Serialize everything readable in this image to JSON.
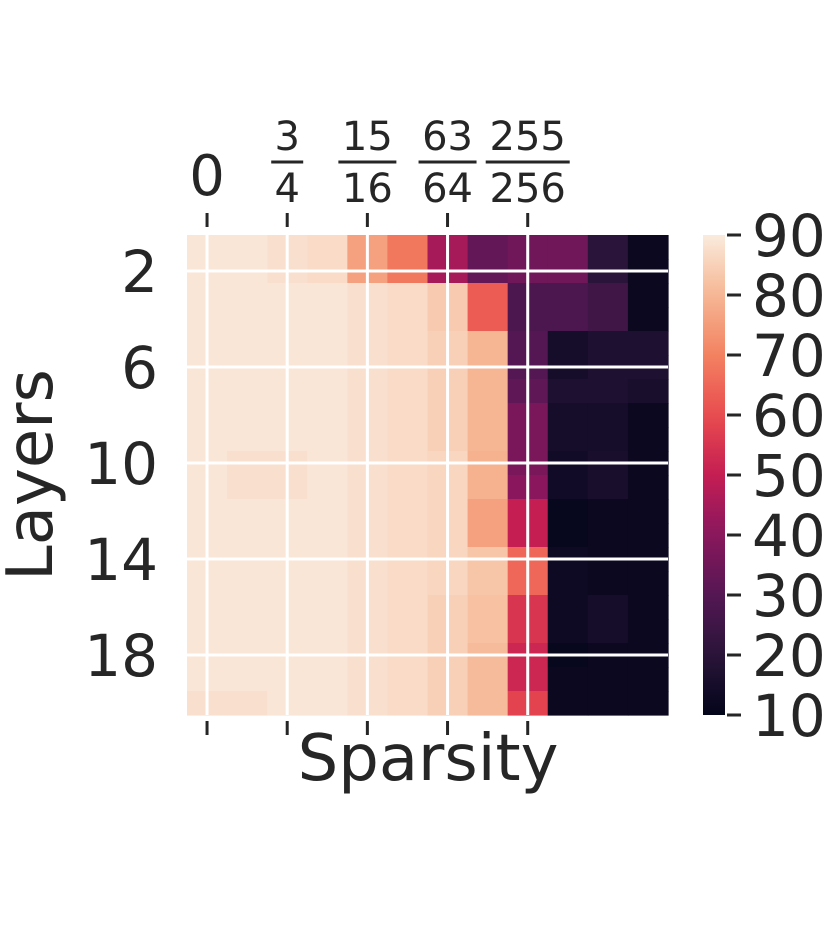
{
  "chart_data": {
    "type": "heatmap",
    "xlabel": "Sparsity",
    "ylabel": "Layers",
    "x_ticks": [
      {
        "label": "0"
      },
      {
        "num": "3",
        "den": "4"
      },
      {
        "num": "15",
        "den": "16"
      },
      {
        "num": "63",
        "den": "64"
      },
      {
        "num": "255",
        "den": "256"
      }
    ],
    "x_tick_col_positions": [
      0.5,
      2.5,
      4.5,
      6.5,
      8.5
    ],
    "y_tick_labels": [
      "2",
      "6",
      "10",
      "14",
      "18"
    ],
    "y_tick_layers": [
      2,
      6,
      10,
      14,
      18
    ],
    "layers": [
      1,
      2,
      3,
      4,
      5,
      6,
      7,
      8,
      9,
      10,
      11,
      12,
      13,
      14,
      15,
      16,
      17,
      18,
      19,
      20
    ],
    "colorbar": {
      "min": 10,
      "max": 90,
      "tick_labels": [
        "90",
        "80",
        "70",
        "60",
        "50",
        "40",
        "30",
        "20",
        "10"
      ],
      "tick_values": [
        90,
        80,
        70,
        60,
        50,
        40,
        30,
        20,
        10
      ],
      "colormap": "rocket"
    },
    "grid": true,
    "values": [
      [
        89,
        89,
        88,
        87,
        76,
        68,
        45,
        33,
        35,
        35,
        20,
        12
      ],
      [
        89,
        89,
        88,
        87,
        76,
        68,
        45,
        33,
        35,
        35,
        20,
        12
      ],
      [
        89,
        89,
        89,
        89,
        88,
        87,
        84,
        63,
        28,
        28,
        25,
        12
      ],
      [
        89,
        89,
        89,
        89,
        88,
        87,
        84,
        63,
        28,
        28,
        25,
        12
      ],
      [
        89,
        89,
        89,
        89,
        88,
        87,
        85,
        80,
        30,
        15,
        17,
        17
      ],
      [
        89,
        89,
        89,
        89,
        88,
        87,
        85,
        80,
        30,
        15,
        17,
        17
      ],
      [
        89,
        89,
        89,
        89,
        88,
        87,
        85,
        80,
        32,
        17,
        17,
        16
      ],
      [
        89,
        89,
        89,
        89,
        88,
        87,
        85,
        80,
        37,
        15,
        15,
        12
      ],
      [
        89,
        89,
        89,
        89,
        88,
        87,
        85,
        80,
        37,
        15,
        15,
        12
      ],
      [
        89,
        88,
        88,
        89,
        88,
        87,
        86,
        79,
        37,
        14,
        16,
        12
      ],
      [
        89,
        88,
        88,
        89,
        88,
        87,
        86,
        79,
        40,
        14,
        16,
        12
      ],
      [
        89,
        89,
        89,
        89,
        88,
        87,
        86,
        76,
        50,
        11,
        12,
        12
      ],
      [
        89,
        89,
        89,
        89,
        88,
        87,
        86,
        76,
        50,
        11,
        12,
        12
      ],
      [
        89,
        89,
        89,
        89,
        88,
        87,
        86,
        83,
        65,
        13,
        12,
        12
      ],
      [
        89,
        89,
        89,
        89,
        88,
        87,
        86,
        83,
        65,
        13,
        12,
        12
      ],
      [
        89,
        89,
        89,
        89,
        88,
        87,
        85,
        82,
        55,
        13,
        15,
        12
      ],
      [
        89,
        89,
        89,
        89,
        88,
        87,
        85,
        82,
        55,
        13,
        15,
        12
      ],
      [
        89,
        89,
        89,
        89,
        88,
        87,
        85,
        81,
        52,
        11,
        12,
        12
      ],
      [
        89,
        89,
        89,
        89,
        88,
        87,
        85,
        81,
        52,
        12,
        12,
        12
      ],
      [
        88,
        88,
        89,
        89,
        88,
        87,
        85,
        81,
        58,
        12,
        12,
        12
      ]
    ]
  }
}
